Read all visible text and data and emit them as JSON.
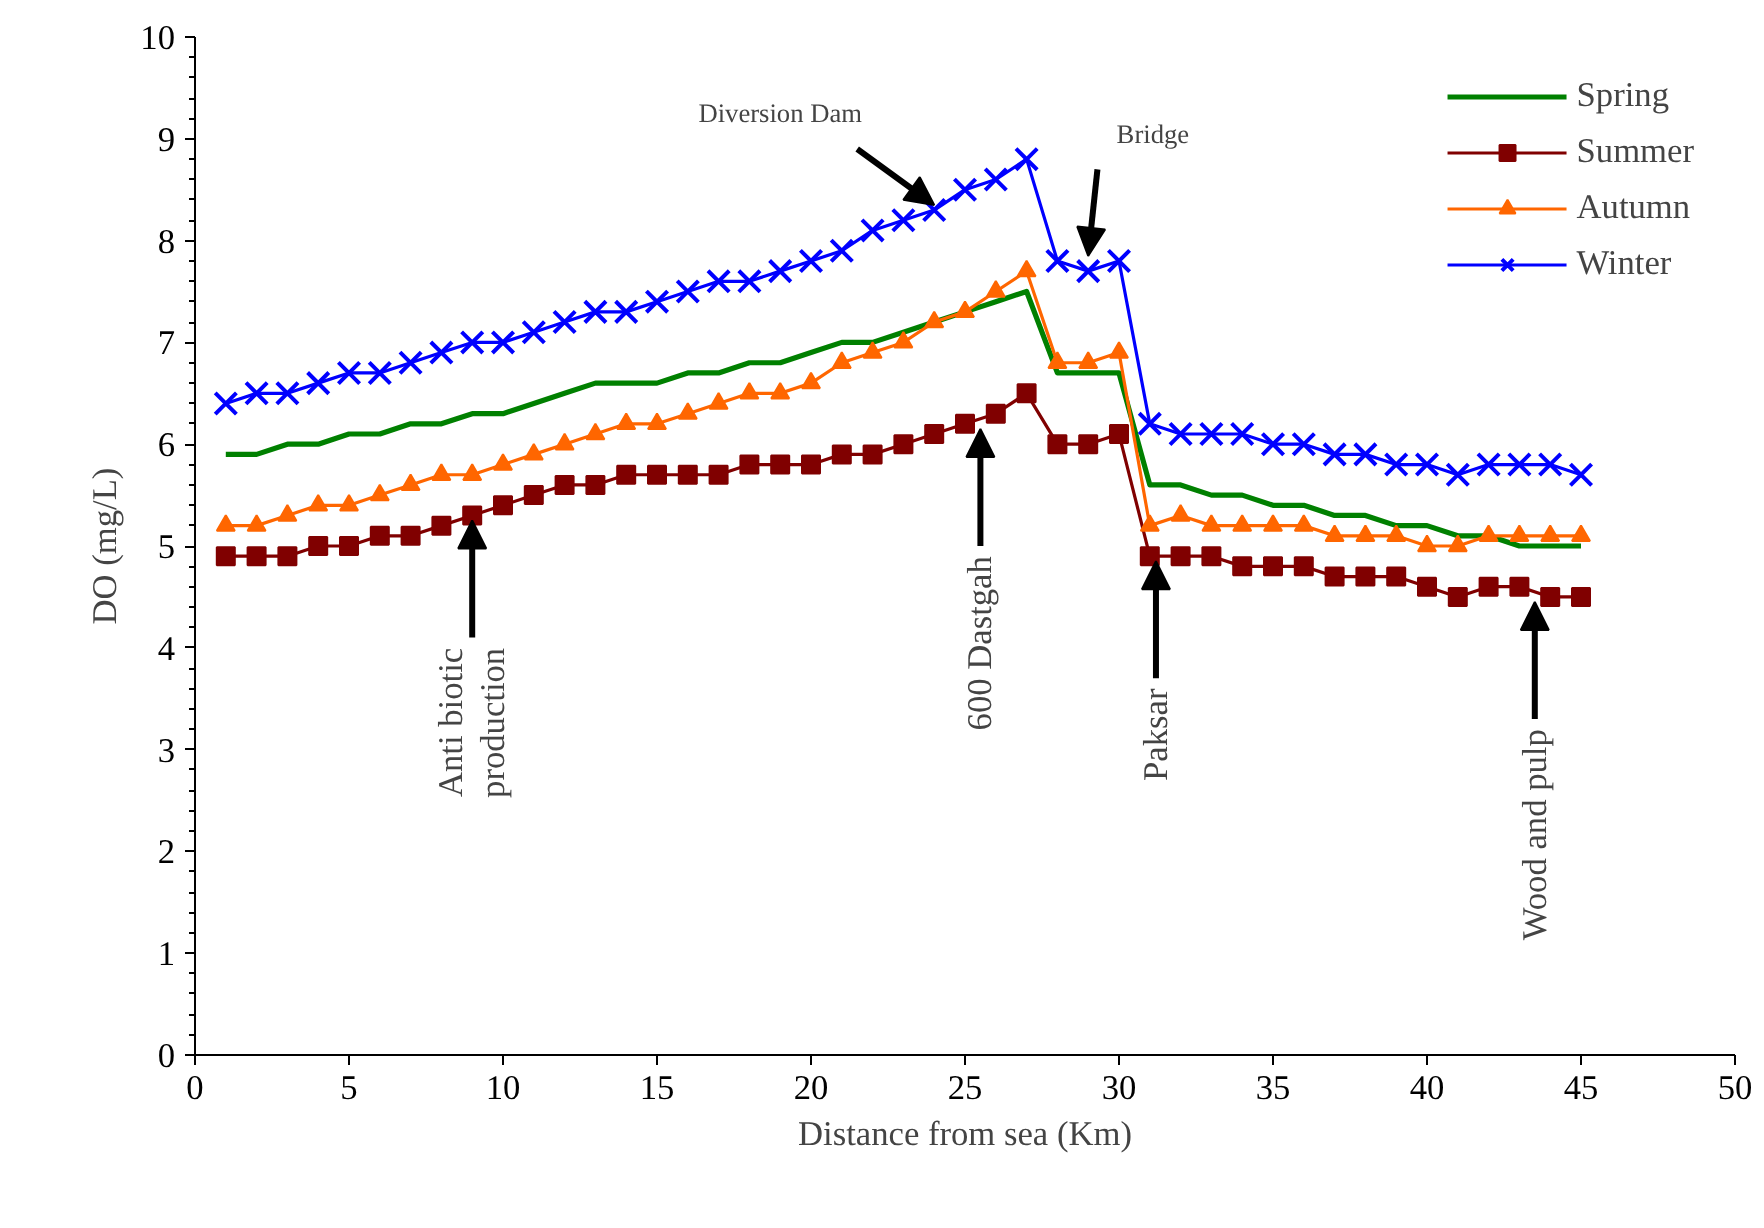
{
  "chart_data": {
    "type": "line",
    "xlabel": "Distance from sea (Km)",
    "ylabel": "DO (mg/L)",
    "xlim": [
      0,
      50
    ],
    "xticks": [
      0,
      5,
      10,
      15,
      20,
      25,
      30,
      35,
      40,
      45,
      50
    ],
    "ylim": [
      0,
      10
    ],
    "yticks": [
      0,
      1,
      2,
      3,
      4,
      5,
      6,
      7,
      8,
      9,
      10
    ],
    "grid": false,
    "legend": "top right",
    "x": [
      1,
      2,
      3,
      4,
      5,
      6,
      7,
      8,
      9,
      10,
      11,
      12,
      13,
      14,
      15,
      16,
      17,
      18,
      19,
      20,
      21,
      22,
      23,
      24,
      25,
      26,
      27,
      28,
      29,
      30,
      31,
      32,
      33,
      34,
      35,
      36,
      37,
      38,
      39,
      40,
      41,
      42,
      43,
      44,
      45
    ],
    "series": [
      {
        "name": "Spring",
        "color": "#008000",
        "marker": "none",
        "values": [
          5.9,
          5.9,
          6.0,
          6.0,
          6.1,
          6.1,
          6.2,
          6.2,
          6.3,
          6.3,
          6.4,
          6.5,
          6.6,
          6.6,
          6.6,
          6.7,
          6.7,
          6.8,
          6.8,
          6.9,
          7.0,
          7.0,
          7.1,
          7.2,
          7.3,
          7.4,
          7.5,
          6.7,
          6.7,
          6.7,
          5.6,
          5.6,
          5.5,
          5.5,
          5.4,
          5.4,
          5.3,
          5.3,
          5.2,
          5.2,
          5.1,
          5.1,
          5.0,
          5.0,
          5.0
        ]
      },
      {
        "name": "Summer",
        "color": "#800000",
        "marker": "square",
        "values": [
          4.9,
          4.9,
          4.9,
          5.0,
          5.0,
          5.1,
          5.1,
          5.2,
          5.3,
          5.4,
          5.5,
          5.6,
          5.6,
          5.7,
          5.7,
          5.7,
          5.7,
          5.8,
          5.8,
          5.8,
          5.9,
          5.9,
          6.0,
          6.1,
          6.2,
          6.3,
          6.5,
          6.0,
          6.0,
          6.1,
          4.9,
          4.9,
          4.9,
          4.8,
          4.8,
          4.8,
          4.7,
          4.7,
          4.7,
          4.6,
          4.5,
          4.6,
          4.6,
          4.5,
          4.5
        ]
      },
      {
        "name": "Autumn",
        "color": "#ff6600",
        "marker": "triangle",
        "values": [
          5.2,
          5.2,
          5.3,
          5.4,
          5.4,
          5.5,
          5.6,
          5.7,
          5.7,
          5.8,
          5.9,
          6.0,
          6.1,
          6.2,
          6.2,
          6.3,
          6.4,
          6.5,
          6.5,
          6.6,
          6.8,
          6.9,
          7.0,
          7.2,
          7.3,
          7.5,
          7.7,
          6.8,
          6.8,
          6.9,
          5.2,
          5.3,
          5.2,
          5.2,
          5.2,
          5.2,
          5.1,
          5.1,
          5.1,
          5.0,
          5.0,
          5.1,
          5.1,
          5.1,
          5.1
        ]
      },
      {
        "name": "Winter",
        "color": "#0000ff",
        "marker": "cross",
        "values": [
          6.4,
          6.5,
          6.5,
          6.6,
          6.7,
          6.7,
          6.8,
          6.9,
          7.0,
          7.0,
          7.1,
          7.2,
          7.3,
          7.3,
          7.4,
          7.5,
          7.6,
          7.6,
          7.7,
          7.8,
          7.9,
          8.1,
          8.2,
          8.3,
          8.5,
          8.6,
          8.8,
          7.8,
          7.7,
          7.8,
          6.2,
          6.1,
          6.1,
          6.1,
          6.0,
          6.0,
          5.9,
          5.9,
          5.8,
          5.8,
          5.7,
          5.8,
          5.8,
          5.8,
          5.7
        ]
      }
    ],
    "annotations": [
      {
        "text": "Diversion Dam",
        "x": 24,
        "y": 8.3
      },
      {
        "text": "Bridge",
        "x": 29,
        "y": 7.8
      },
      {
        "text": "Anti biotic\nproduction",
        "x": 9,
        "y": 5.3
      },
      {
        "text": "600 Dastgah",
        "x": 25.5,
        "y": 6.2
      },
      {
        "text": "Paksar",
        "x": 31.2,
        "y": 4.9
      },
      {
        "text": "Wood and pulp",
        "x": 43.5,
        "y": 4.5
      }
    ]
  }
}
